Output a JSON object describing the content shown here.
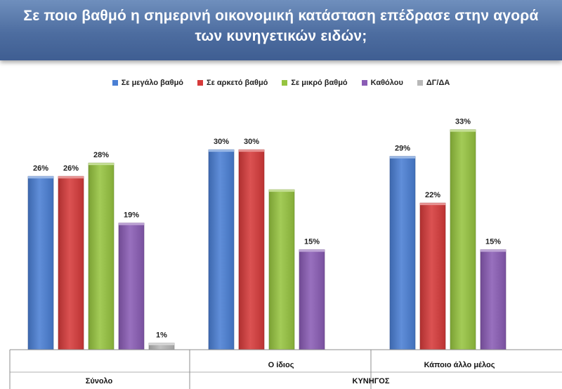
{
  "title": "Σε ποιο βαθμό η σημερινή οικονομική κατάσταση επέδρασε στην αγορά των κυνηγετικών ειδών;",
  "chart_data": {
    "type": "bar",
    "title": "Σε ποιο βαθμό η σημερινή οικονομική κατάσταση επέδρασε στην αγορά των κυνηγετικών ειδών;",
    "categories": [
      "Σύνολο",
      "Ο ίδιος",
      "Κάποιο άλλο μέλος"
    ],
    "group_label": "ΚΥΝΗΓΟΣ",
    "ylim": [
      0,
      35
    ],
    "grid": false,
    "legend_position": "top",
    "series": [
      {
        "name": "Σε μεγάλο βαθμό",
        "color": "#4a7fd4",
        "values": [
          26,
          30,
          29
        ],
        "labels": [
          "26%",
          "30%",
          "29%"
        ]
      },
      {
        "name": "Σε αρκετό βαθμό",
        "color": "#d63a3a",
        "values": [
          26,
          30,
          22
        ],
        "labels": [
          "26%",
          "30%",
          "22%"
        ]
      },
      {
        "name": "Σε μικρό βαθμό",
        "color": "#96c440",
        "values": [
          28,
          24,
          33
        ],
        "labels": [
          "28%",
          "",
          "33%"
        ]
      },
      {
        "name": "Καθόλου",
        "color": "#8a5cb5",
        "values": [
          19,
          15,
          15
        ],
        "labels": [
          "19%",
          "15%",
          "15%"
        ]
      },
      {
        "name": "ΔΓ/ΔΑ",
        "color": "#b8b8b8",
        "values": [
          1,
          0,
          0
        ],
        "labels": [
          "1%",
          "",
          ""
        ]
      }
    ]
  }
}
